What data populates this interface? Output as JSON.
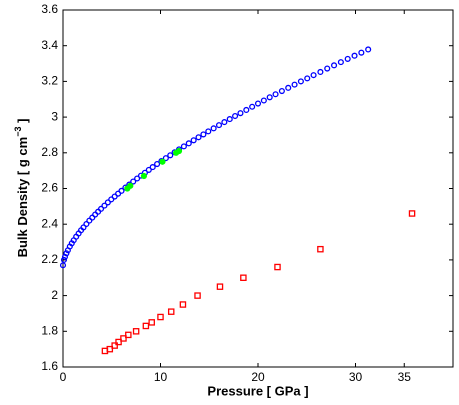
{
  "chart_data": {
    "type": "scatter",
    "xlabel": "Pressure [ GPa ]",
    "ylabel": "Bulk Density [ g cm",
    "ylabel_sup": "−3",
    "ylabel_end": " ]",
    "xlim": [
      0,
      40
    ],
    "xticks": [
      0,
      10,
      20,
      30,
      35
    ],
    "ylim": [
      1.6,
      3.6
    ],
    "yticks": [
      1.6,
      1.8,
      2,
      2.2,
      2.4,
      2.6,
      2.8,
      3,
      3.2,
      3.4,
      3.6
    ],
    "grid": false,
    "series": [
      {
        "color": "#0000ff",
        "marker": "circle",
        "x": [
          0,
          0.1,
          0.2,
          0.35,
          0.5,
          0.7,
          0.9,
          1.1,
          1.35,
          1.6,
          1.85,
          2.1,
          2.4,
          2.7,
          3.0,
          3.3,
          3.6,
          3.9,
          4.25,
          4.6,
          4.95,
          5.3,
          5.65,
          6.0,
          6.4,
          6.8,
          7.2,
          7.6,
          8.0,
          8.4,
          8.8,
          9.2,
          9.65,
          10.1,
          10.55,
          11.0,
          11.45,
          11.9,
          12.4,
          12.9,
          13.4,
          13.9,
          14.4,
          14.9,
          15.45,
          16.0,
          16.55,
          17.1,
          17.65,
          18.2,
          18.8,
          19.4,
          20.0,
          20.6,
          21.2,
          21.8,
          22.45,
          23.1,
          23.75,
          24.4,
          25.05,
          25.7,
          26.4,
          27.1,
          27.8,
          28.5,
          29.2,
          29.9,
          30.6,
          31.3
        ],
        "values": [
          2.17,
          2.2,
          2.217,
          2.237,
          2.254,
          2.275,
          2.293,
          2.31,
          2.33,
          2.348,
          2.366,
          2.382,
          2.401,
          2.42,
          2.437,
          2.454,
          2.47,
          2.486,
          2.504,
          2.522,
          2.539,
          2.555,
          2.571,
          2.587,
          2.605,
          2.622,
          2.639,
          2.656,
          2.672,
          2.688,
          2.704,
          2.72,
          2.737,
          2.754,
          2.77,
          2.786,
          2.803,
          2.819,
          2.836,
          2.853,
          2.87,
          2.887,
          2.903,
          2.92,
          2.937,
          2.955,
          2.972,
          2.989,
          3.006,
          3.022,
          3.04,
          3.058,
          3.076,
          3.093,
          3.111,
          3.128,
          3.146,
          3.164,
          3.182,
          3.2,
          3.217,
          3.235,
          3.253,
          3.272,
          3.29,
          3.308,
          3.326,
          3.344,
          3.361,
          3.379
        ]
      },
      {
        "color": "#00ff00",
        "marker": "dot",
        "x": [
          6.6,
          6.9,
          8.3,
          10.2,
          11.6,
          11.9
        ],
        "values": [
          2.6,
          2.615,
          2.67,
          2.75,
          2.8,
          2.81
        ]
      },
      {
        "color": "#ff0000",
        "marker": "square",
        "x": [
          4.3,
          4.8,
          5.3,
          5.7,
          6.2,
          6.7,
          7.5,
          8.5,
          9.1,
          10.0,
          11.1,
          12.3,
          13.8,
          16.1,
          18.5,
          22.0,
          26.4,
          35.8
        ],
        "values": [
          1.69,
          1.7,
          1.72,
          1.74,
          1.76,
          1.78,
          1.8,
          1.83,
          1.85,
          1.88,
          1.91,
          1.95,
          2.0,
          2.05,
          2.1,
          2.16,
          2.26,
          2.46
        ]
      }
    ]
  }
}
